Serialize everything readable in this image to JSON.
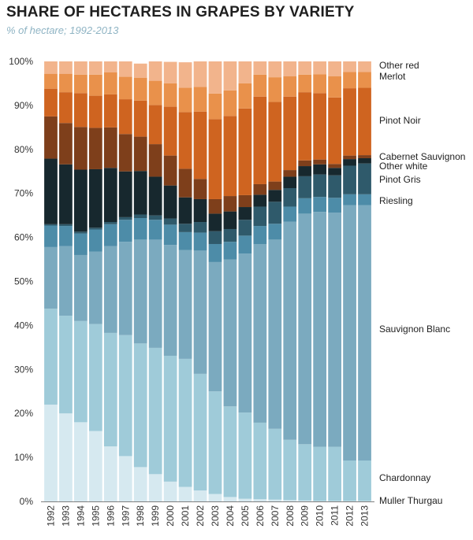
{
  "chart_data": {
    "type": "bar",
    "stacked": true,
    "title": "SHARE OF HECTARES IN GRAPES BY VARIETY",
    "subtitle": "% of hectare; 1992-2013",
    "xlabel": "",
    "ylabel": "",
    "ylim": [
      0,
      100
    ],
    "y_ticks": [
      "0%",
      "10%",
      "20%",
      "30%",
      "40%",
      "50%",
      "60%",
      "70%",
      "80%",
      "90%",
      "100%"
    ],
    "categories": [
      "1992",
      "1993",
      "1994",
      "1995",
      "1996",
      "1997",
      "1998",
      "1999",
      "2000",
      "2001",
      "2002",
      "2003",
      "2004",
      "2005",
      "2006",
      "2007",
      "2008",
      "2009",
      "2010",
      "2011",
      "2012",
      "2013"
    ],
    "series": [
      {
        "name": "Muller Thurgau",
        "color": "#d6e9f0",
        "values": [
          22.0,
          20.0,
          18.0,
          16.0,
          12.5,
          10.3,
          7.8,
          6.2,
          4.5,
          3.3,
          2.5,
          1.7,
          1.0,
          0.6,
          0.5,
          0.4,
          0.3,
          0.2,
          0.1,
          0.1,
          0.1,
          0.1
        ]
      },
      {
        "name": "Chardonnay",
        "color": "#9fcbd9",
        "values": [
          21.8,
          22.2,
          23.0,
          24.3,
          25.8,
          27.5,
          28.1,
          28.7,
          28.6,
          29.1,
          26.5,
          23.3,
          20.6,
          19.6,
          17.4,
          16.1,
          13.7,
          12.8,
          12.3,
          12.3,
          9.2,
          9.2
        ]
      },
      {
        "name": "Sauvignon Blanc",
        "color": "#7baabf",
        "values": [
          14.0,
          15.8,
          15.0,
          16.5,
          19.7,
          21.2,
          23.6,
          24.6,
          25.2,
          24.7,
          28.0,
          29.4,
          33.4,
          36.1,
          40.6,
          43.0,
          49.6,
          52.4,
          53.4,
          53.2,
          58.0,
          58.0
        ]
      },
      {
        "name": "Riesling",
        "color": "#4d8ca8",
        "values": [
          4.9,
          4.6,
          4.9,
          5.0,
          5.0,
          5.0,
          4.9,
          4.5,
          4.6,
          4.1,
          4.1,
          4.1,
          4.0,
          4.1,
          4.1,
          3.6,
          3.4,
          3.5,
          3.4,
          3.4,
          2.5,
          2.5
        ]
      },
      {
        "name": "Pinot Gris",
        "color": "#2f5a6b",
        "values": [
          0.3,
          0.4,
          0.4,
          0.4,
          0.5,
          0.6,
          0.8,
          1.0,
          1.4,
          1.9,
          2.4,
          2.9,
          2.9,
          3.6,
          4.4,
          5.0,
          4.2,
          5.0,
          5.1,
          5.1,
          6.5,
          7.0
        ]
      },
      {
        "name": "Other white",
        "color": "#17282e",
        "values": [
          14.9,
          13.6,
          14.1,
          13.3,
          12.3,
          10.4,
          9.9,
          8.8,
          7.5,
          6.0,
          5.2,
          4.0,
          4.0,
          2.9,
          2.7,
          2.7,
          2.6,
          2.3,
          2.3,
          1.7,
          1.5,
          1.2
        ]
      },
      {
        "name": "Cabernet Sauvignon",
        "color": "#7e3f1b",
        "values": [
          9.6,
          9.4,
          9.7,
          9.4,
          9.2,
          8.5,
          7.8,
          7.4,
          6.8,
          6.5,
          4.6,
          3.3,
          3.5,
          2.7,
          2.4,
          1.9,
          1.5,
          1.3,
          1.1,
          0.9,
          0.8,
          0.7
        ]
      },
      {
        "name": "Pinot Noir",
        "color": "#cf6420",
        "values": [
          6.3,
          7.0,
          7.7,
          7.3,
          7.5,
          7.9,
          8.2,
          8.9,
          11.1,
          12.9,
          15.3,
          18.2,
          18.2,
          19.7,
          19.9,
          18.1,
          16.7,
          15.5,
          15.1,
          15.1,
          15.3,
          15.3
        ]
      },
      {
        "name": "Merlot",
        "color": "#e9914b",
        "values": [
          3.4,
          4.2,
          4.2,
          4.8,
          5.0,
          5.1,
          5.2,
          5.5,
          5.3,
          5.5,
          5.6,
          5.8,
          5.8,
          5.7,
          5.0,
          5.6,
          4.6,
          4.0,
          4.3,
          4.8,
          3.7,
          3.6
        ]
      },
      {
        "name": "Other red",
        "color": "#f2b48c",
        "values": [
          2.8,
          2.8,
          3.0,
          3.0,
          2.5,
          3.5,
          3.2,
          4.4,
          4.9,
          5.8,
          5.8,
          7.3,
          6.6,
          5.0,
          3.0,
          3.6,
          3.4,
          3.0,
          2.9,
          3.4,
          2.4,
          2.4
        ]
      }
    ],
    "legend": {
      "placement": "right",
      "entries": [
        "Other red",
        "Merlot",
        "Pinot Noir",
        "Cabernet Sauvignon",
        "Other white",
        "Pinot Gris",
        "Riesling",
        "Sauvignon Blanc",
        "Chardonnay",
        "Muller Thurgau"
      ]
    },
    "grid": false
  }
}
